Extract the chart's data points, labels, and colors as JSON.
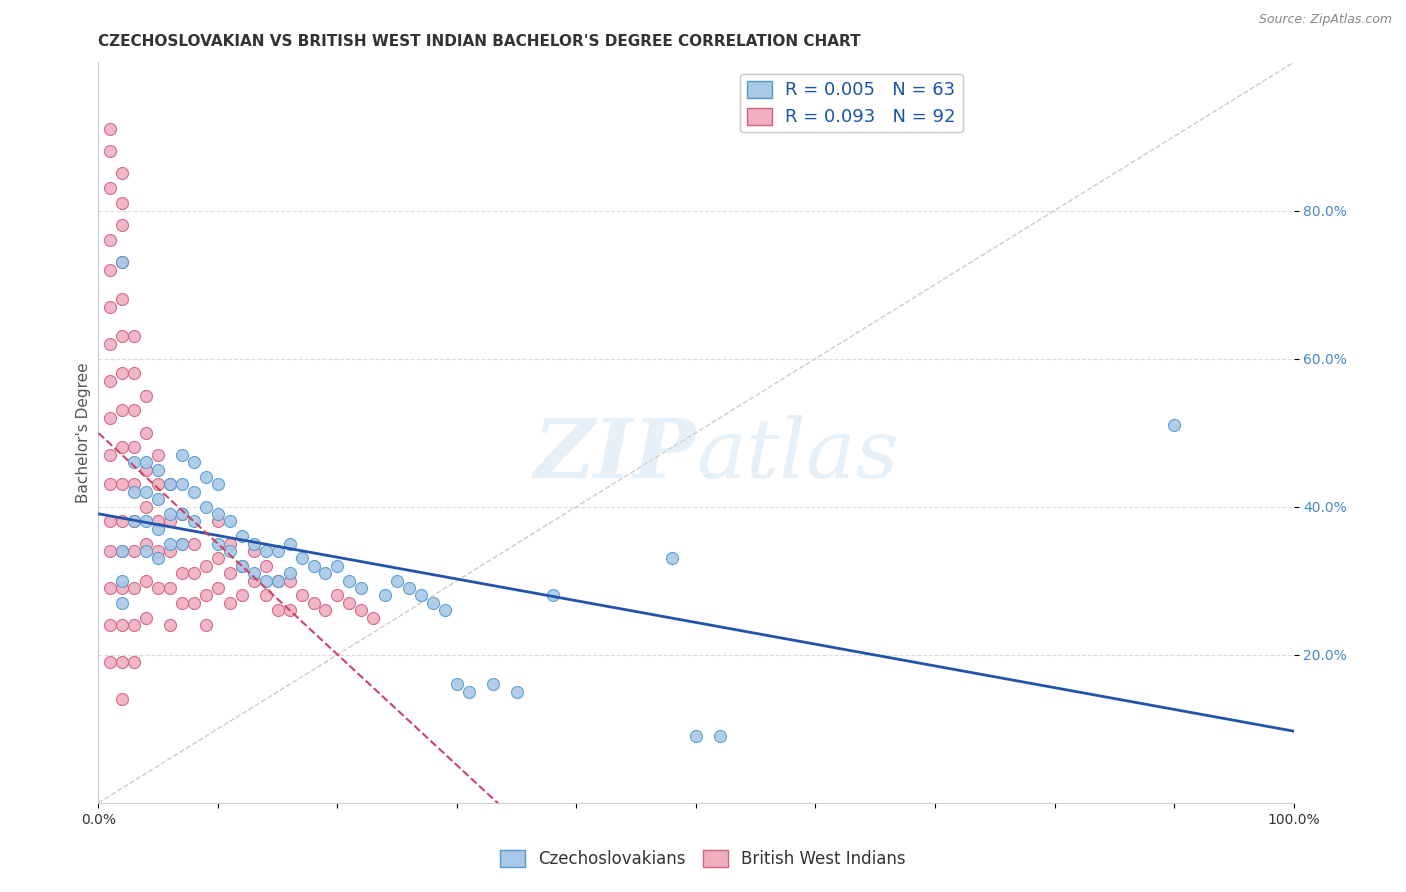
{
  "title": "CZECHOSLOVAKIAN VS BRITISH WEST INDIAN BACHELOR'S DEGREE CORRELATION CHART",
  "source": "Source: ZipAtlas.com",
  "ylabel": "Bachelor's Degree",
  "xlim": [
    0,
    1.0
  ],
  "ylim": [
    0,
    1.0
  ],
  "xticks": [
    0.0,
    0.1,
    0.2,
    0.3,
    0.4,
    0.5,
    0.6,
    0.7,
    0.8,
    0.9,
    1.0
  ],
  "yticks": [
    0.2,
    0.4,
    0.6,
    0.8
  ],
  "xticklabels_show": [
    "0.0%",
    "100.0%"
  ],
  "yticklabels": [
    "20.0%",
    "40.0%",
    "60.0%",
    "80.0%"
  ],
  "legend_line1": "R = 0.005   N = 63",
  "legend_line2": "R = 0.093   N = 92",
  "blue_color": "#a8c8e8",
  "blue_edge": "#5599cc",
  "pink_color": "#f0b0c0",
  "pink_edge": "#d06080",
  "trend_blue_color": "#2255aa",
  "trend_pink_color": "#cc4466",
  "diagonal_color": "#cccccc",
  "watermark_color": "#ddeeff",
  "background_color": "#ffffff",
  "grid_color": "#dddddd",
  "blue_scatter_x": [
    0.02,
    0.02,
    0.02,
    0.03,
    0.03,
    0.03,
    0.04,
    0.04,
    0.04,
    0.04,
    0.05,
    0.05,
    0.05,
    0.05,
    0.06,
    0.06,
    0.06,
    0.07,
    0.07,
    0.07,
    0.07,
    0.08,
    0.08,
    0.08,
    0.09,
    0.09,
    0.1,
    0.1,
    0.1,
    0.11,
    0.11,
    0.12,
    0.12,
    0.13,
    0.13,
    0.14,
    0.14,
    0.15,
    0.15,
    0.16,
    0.16,
    0.17,
    0.18,
    0.19,
    0.2,
    0.21,
    0.22,
    0.24,
    0.25,
    0.26,
    0.27,
    0.28,
    0.29,
    0.3,
    0.31,
    0.33,
    0.35,
    0.38,
    0.48,
    0.5,
    0.52,
    0.9,
    0.02
  ],
  "blue_scatter_y": [
    0.73,
    0.34,
    0.3,
    0.46,
    0.42,
    0.38,
    0.46,
    0.42,
    0.38,
    0.34,
    0.45,
    0.41,
    0.37,
    0.33,
    0.43,
    0.39,
    0.35,
    0.47,
    0.43,
    0.39,
    0.35,
    0.46,
    0.42,
    0.38,
    0.44,
    0.4,
    0.43,
    0.39,
    0.35,
    0.38,
    0.34,
    0.36,
    0.32,
    0.35,
    0.31,
    0.34,
    0.3,
    0.34,
    0.3,
    0.35,
    0.31,
    0.33,
    0.32,
    0.31,
    0.32,
    0.3,
    0.29,
    0.28,
    0.3,
    0.29,
    0.28,
    0.27,
    0.26,
    0.16,
    0.15,
    0.16,
    0.15,
    0.28,
    0.33,
    0.09,
    0.09,
    0.51,
    0.27
  ],
  "pink_scatter_x": [
    0.01,
    0.01,
    0.01,
    0.01,
    0.01,
    0.01,
    0.01,
    0.01,
    0.01,
    0.01,
    0.01,
    0.01,
    0.02,
    0.02,
    0.02,
    0.02,
    0.02,
    0.02,
    0.02,
    0.02,
    0.02,
    0.02,
    0.02,
    0.02,
    0.02,
    0.03,
    0.03,
    0.03,
    0.03,
    0.03,
    0.03,
    0.03,
    0.03,
    0.03,
    0.04,
    0.04,
    0.04,
    0.04,
    0.04,
    0.04,
    0.04,
    0.05,
    0.05,
    0.05,
    0.05,
    0.05,
    0.06,
    0.06,
    0.06,
    0.06,
    0.06,
    0.07,
    0.07,
    0.07,
    0.07,
    0.08,
    0.08,
    0.08,
    0.09,
    0.09,
    0.09,
    0.1,
    0.1,
    0.1,
    0.11,
    0.11,
    0.11,
    0.12,
    0.12,
    0.13,
    0.13,
    0.14,
    0.14,
    0.15,
    0.15,
    0.16,
    0.16,
    0.17,
    0.18,
    0.19,
    0.2,
    0.21,
    0.22,
    0.23,
    0.01,
    0.01,
    0.02,
    0.02,
    0.01,
    0.02,
    0.01,
    0.03
  ],
  "pink_scatter_y": [
    0.72,
    0.67,
    0.62,
    0.57,
    0.52,
    0.47,
    0.43,
    0.38,
    0.34,
    0.29,
    0.24,
    0.19,
    0.78,
    0.68,
    0.63,
    0.58,
    0.53,
    0.48,
    0.43,
    0.38,
    0.34,
    0.29,
    0.24,
    0.19,
    0.14,
    0.63,
    0.58,
    0.53,
    0.48,
    0.43,
    0.38,
    0.34,
    0.29,
    0.24,
    0.55,
    0.5,
    0.45,
    0.4,
    0.35,
    0.3,
    0.25,
    0.47,
    0.43,
    0.38,
    0.34,
    0.29,
    0.43,
    0.38,
    0.34,
    0.29,
    0.24,
    0.39,
    0.35,
    0.31,
    0.27,
    0.35,
    0.31,
    0.27,
    0.32,
    0.28,
    0.24,
    0.38,
    0.33,
    0.29,
    0.35,
    0.31,
    0.27,
    0.32,
    0.28,
    0.34,
    0.3,
    0.32,
    0.28,
    0.3,
    0.26,
    0.3,
    0.26,
    0.28,
    0.27,
    0.26,
    0.28,
    0.27,
    0.26,
    0.25,
    0.83,
    0.76,
    0.85,
    0.73,
    0.88,
    0.81,
    0.91,
    0.19
  ]
}
